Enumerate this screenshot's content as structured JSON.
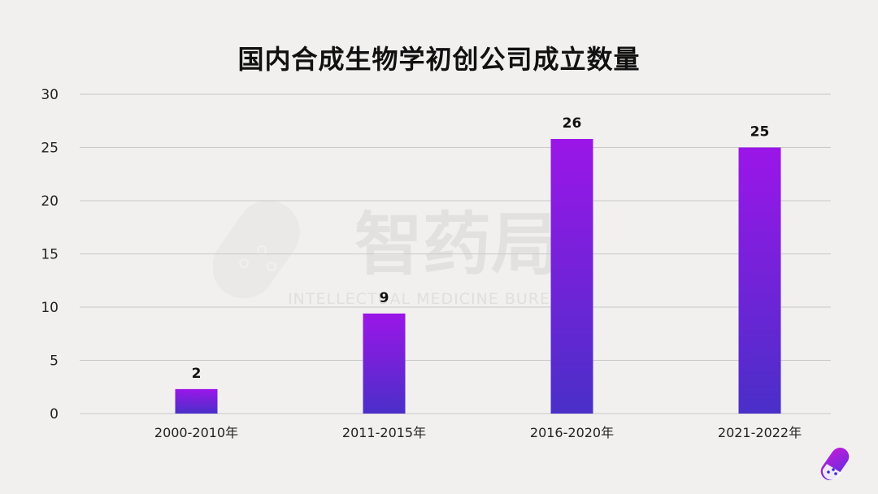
{
  "chart_data": {
    "type": "bar",
    "title": "国内合成生物学初创公司成立数量",
    "categories": [
      "2000-2010年",
      "2011-2015年",
      "2016-2020年",
      "2021-2022年"
    ],
    "values": [
      2,
      9,
      26,
      25
    ],
    "bar_heights": [
      2.3,
      9.4,
      25.8,
      25.0
    ],
    "yticks": [
      0,
      5,
      10,
      15,
      20,
      25,
      30
    ],
    "ylim": [
      0,
      30
    ],
    "xlabel": "",
    "ylabel": "",
    "grid": true,
    "colors": {
      "bar_top": "#9b16e8",
      "bar_bottom": "#4a2fc8",
      "grid": "#c9c9c9",
      "text": "#222222"
    }
  },
  "watermark": {
    "brand": "智药局",
    "subtitle": "INTELLECTUAL MEDICINE BUREAU"
  },
  "icons": {
    "corner": "pill-logo-icon",
    "watermark": "pill-watermark-icon"
  }
}
